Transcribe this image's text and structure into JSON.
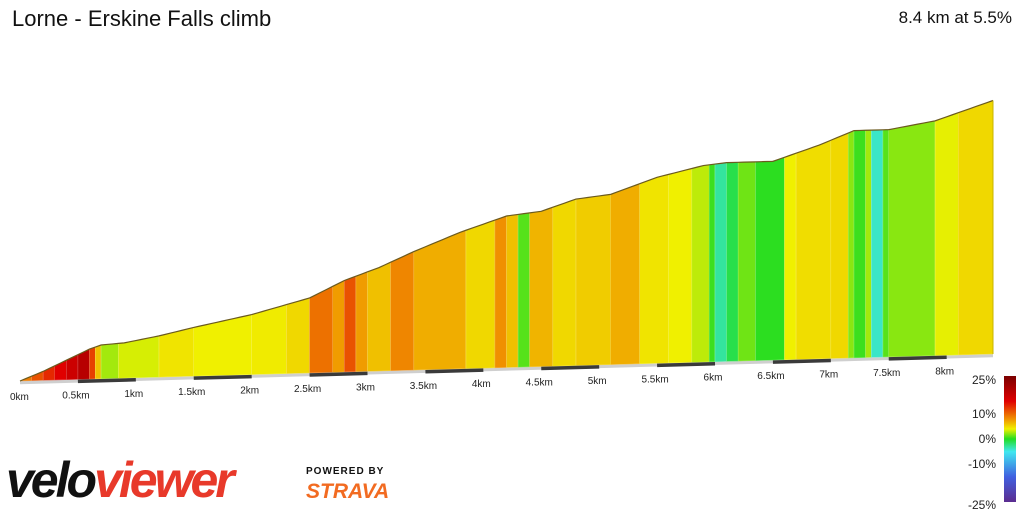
{
  "header": {
    "title": "Lorne - Erskine Falls climb",
    "summary": "8.4 km at 5.5%"
  },
  "chart_data": {
    "type": "area",
    "title": "Lorne - Erskine Falls climb",
    "xlabel": "",
    "ylabel": "",
    "xlim": [
      0,
      8.4
    ],
    "x_ticks": [
      "0km",
      "0.5km",
      "1km",
      "1.5km",
      "2km",
      "2.5km",
      "3km",
      "3.5km",
      "4km",
      "4.5km",
      "5km",
      "5.5km",
      "6km",
      "6.5km",
      "7km",
      "7.5km",
      "8km"
    ],
    "x_tick_values": [
      0,
      0.5,
      1,
      1.5,
      2,
      2.5,
      3,
      3.5,
      4,
      4.5,
      5,
      5.5,
      6,
      6.5,
      7,
      7.5,
      8
    ],
    "elevation_profile": {
      "distance_km": [
        0,
        0.2,
        0.4,
        0.6,
        0.7,
        0.9,
        1.2,
        1.5,
        2.0,
        2.5,
        2.8,
        3.1,
        3.4,
        3.8,
        4.2,
        4.5,
        4.8,
        5.1,
        5.5,
        5.9,
        6.1,
        6.5,
        6.9,
        7.2,
        7.5,
        7.9,
        8.2,
        8.4
      ],
      "elevation_rel": [
        0,
        12,
        26,
        40,
        45,
        47,
        55,
        65,
        80,
        100,
        122,
        138,
        158,
        182,
        202,
        207,
        222,
        227,
        248,
        262,
        265,
        265,
        285,
        303,
        303,
        313,
        328,
        338
      ]
    },
    "segments": [
      {
        "start": 0.0,
        "end": 0.1,
        "gradient": 9
      },
      {
        "start": 0.1,
        "end": 0.2,
        "gradient": 11
      },
      {
        "start": 0.2,
        "end": 0.3,
        "gradient": 13
      },
      {
        "start": 0.3,
        "end": 0.4,
        "gradient": 15
      },
      {
        "start": 0.4,
        "end": 0.5,
        "gradient": 17
      },
      {
        "start": 0.5,
        "end": 0.6,
        "gradient": 19
      },
      {
        "start": 0.6,
        "end": 0.65,
        "gradient": 12
      },
      {
        "start": 0.65,
        "end": 0.7,
        "gradient": 6
      },
      {
        "start": 0.7,
        "end": 0.85,
        "gradient": 2.5
      },
      {
        "start": 0.85,
        "end": 1.2,
        "gradient": 3.5
      },
      {
        "start": 1.2,
        "end": 1.5,
        "gradient": 4.5
      },
      {
        "start": 1.5,
        "end": 2.0,
        "gradient": 4
      },
      {
        "start": 2.0,
        "end": 2.3,
        "gradient": 4.2
      },
      {
        "start": 2.3,
        "end": 2.5,
        "gradient": 5
      },
      {
        "start": 2.5,
        "end": 2.7,
        "gradient": 9.5
      },
      {
        "start": 2.7,
        "end": 2.8,
        "gradient": 7.5
      },
      {
        "start": 2.8,
        "end": 2.9,
        "gradient": 11
      },
      {
        "start": 2.9,
        "end": 3.0,
        "gradient": 7.5
      },
      {
        "start": 3.0,
        "end": 3.2,
        "gradient": 6
      },
      {
        "start": 3.2,
        "end": 3.4,
        "gradient": 8.5
      },
      {
        "start": 3.4,
        "end": 3.85,
        "gradient": 6.8
      },
      {
        "start": 3.85,
        "end": 4.1,
        "gradient": 5
      },
      {
        "start": 4.1,
        "end": 4.2,
        "gradient": 8
      },
      {
        "start": 4.2,
        "end": 4.3,
        "gradient": 6
      },
      {
        "start": 4.3,
        "end": 4.4,
        "gradient": 1
      },
      {
        "start": 4.4,
        "end": 4.6,
        "gradient": 6.5
      },
      {
        "start": 4.6,
        "end": 4.8,
        "gradient": 5
      },
      {
        "start": 4.8,
        "end": 5.1,
        "gradient": 5.5
      },
      {
        "start": 5.1,
        "end": 5.35,
        "gradient": 6.8
      },
      {
        "start": 5.35,
        "end": 5.6,
        "gradient": 4.5
      },
      {
        "start": 5.6,
        "end": 5.8,
        "gradient": 4
      },
      {
        "start": 5.8,
        "end": 5.95,
        "gradient": 3
      },
      {
        "start": 5.95,
        "end": 6.0,
        "gradient": 0.5
      },
      {
        "start": 6.0,
        "end": 6.1,
        "gradient": -3
      },
      {
        "start": 6.1,
        "end": 6.2,
        "gradient": -1
      },
      {
        "start": 6.2,
        "end": 6.35,
        "gradient": 1.5
      },
      {
        "start": 6.35,
        "end": 6.6,
        "gradient": 0.2
      },
      {
        "start": 6.6,
        "end": 6.7,
        "gradient": 4
      },
      {
        "start": 6.7,
        "end": 7.0,
        "gradient": 4.8
      },
      {
        "start": 7.0,
        "end": 7.15,
        "gradient": 5
      },
      {
        "start": 7.15,
        "end": 7.2,
        "gradient": 2
      },
      {
        "start": 7.2,
        "end": 7.3,
        "gradient": 0.5
      },
      {
        "start": 7.3,
        "end": 7.35,
        "gradient": 2.5
      },
      {
        "start": 7.35,
        "end": 7.45,
        "gradient": -4
      },
      {
        "start": 7.45,
        "end": 7.5,
        "gradient": 1
      },
      {
        "start": 7.5,
        "end": 7.9,
        "gradient": 2
      },
      {
        "start": 7.9,
        "end": 8.1,
        "gradient": 3.8
      },
      {
        "start": 8.1,
        "end": 8.4,
        "gradient": 5
      }
    ],
    "legend": {
      "title": "",
      "ticks": [
        "25%",
        "10%",
        "0%",
        "-10%",
        "-25%"
      ],
      "tick_values": [
        25,
        10,
        0,
        -10,
        -25
      ],
      "placement": "right",
      "colors": [
        "#5b2c8f",
        "#4060e0",
        "#40e8f0",
        "#22dd22",
        "#f0f000",
        "#f09000",
        "#e00000",
        "#7a0000"
      ]
    }
  },
  "brand": {
    "logo_part1": "velo",
    "logo_part2": "viewer",
    "powered_by": "POWERED BY",
    "strava": "STRAVA"
  }
}
